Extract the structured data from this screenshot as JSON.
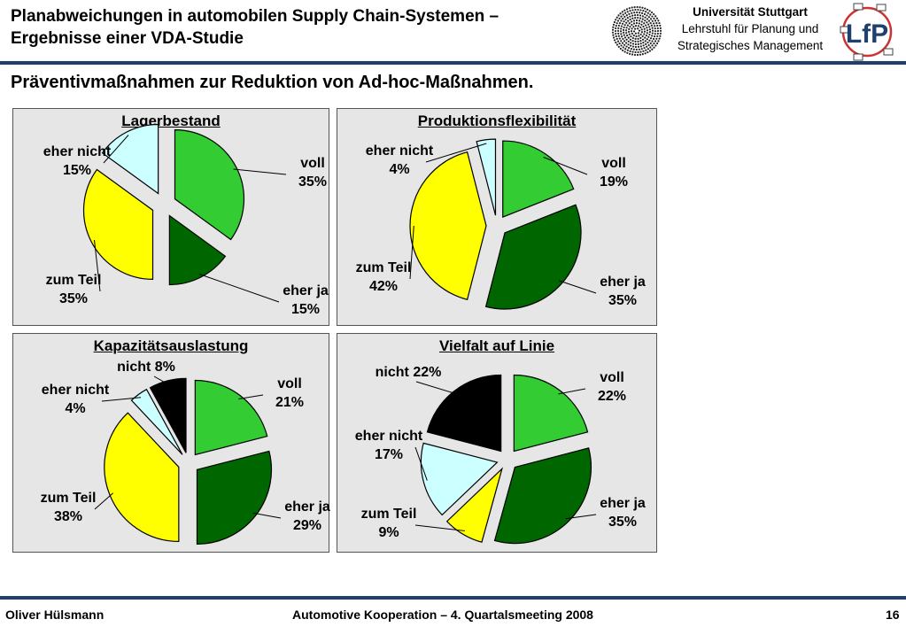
{
  "header": {
    "title_line1": "Planabweichungen in automobilen Supply Chain-Systemen –",
    "title_line2": "Ergebnisse einer VDA-Studie",
    "university": "Universität Stuttgart",
    "chair_line1": "Lehrstuhl für Planung und",
    "chair_line2": "Strategisches Management",
    "logo_text": "LfP"
  },
  "subtitle": "Präventivmaßnahmen zur Reduktion von Ad-hoc-Maßnahmen.",
  "colors": {
    "voll": "#33cc33",
    "eher_ja": "#006600",
    "zum_teil": "#ffff00",
    "eher_nicht": "#ccffff",
    "nicht": "#000000",
    "panel_bg": "#e6e6e6",
    "rule": "#1f3f6e"
  },
  "chart_data": [
    {
      "type": "pie",
      "title": "Lagerbestand",
      "slices": [
        {
          "key": "voll",
          "line1": "voll",
          "line2": "35%",
          "value": 35
        },
        {
          "key": "eher_ja",
          "line1": "eher ja",
          "line2": "15%",
          "value": 15
        },
        {
          "key": "zum_teil",
          "line1": "zum Teil",
          "line2": "35%",
          "value": 35
        },
        {
          "key": "eher_nicht",
          "line1": "eher nicht",
          "line2": "15%",
          "value": 15
        }
      ]
    },
    {
      "type": "pie",
      "title": "Produktionsflexibilität",
      "slices": [
        {
          "key": "voll",
          "line1": "voll",
          "line2": "19%",
          "value": 19
        },
        {
          "key": "eher_ja",
          "line1": "eher ja",
          "line2": "35%",
          "value": 35
        },
        {
          "key": "zum_teil",
          "line1": "zum Teil",
          "line2": "42%",
          "value": 42
        },
        {
          "key": "eher_nicht",
          "line1": "eher nicht",
          "line2": "4%",
          "value": 4
        }
      ]
    },
    {
      "type": "pie",
      "title": "Kapazitätsauslastung",
      "slices": [
        {
          "key": "voll",
          "line1": "voll",
          "line2": "21%",
          "value": 21
        },
        {
          "key": "eher_ja",
          "line1": "eher ja",
          "line2": "29%",
          "value": 29
        },
        {
          "key": "zum_teil",
          "line1": "zum Teil",
          "line2": "38%",
          "value": 38
        },
        {
          "key": "eher_nicht",
          "line1": "eher nicht",
          "line2": "4%",
          "value": 4
        },
        {
          "key": "nicht",
          "line1": "nicht 8%",
          "line2": "",
          "value": 8
        }
      ]
    },
    {
      "type": "pie",
      "title": "Vielfalt auf Linie",
      "slices": [
        {
          "key": "voll",
          "line1": "voll",
          "line2": "22%",
          "value": 22
        },
        {
          "key": "eher_ja",
          "line1": "eher ja",
          "line2": "35%",
          "value": 35
        },
        {
          "key": "zum_teil",
          "line1": "zum Teil",
          "line2": "9%",
          "value": 9
        },
        {
          "key": "eher_nicht",
          "line1": "eher nicht",
          "line2": "17%",
          "value": 17
        },
        {
          "key": "nicht",
          "line1": "nicht 22%",
          "line2": "",
          "value": 22
        }
      ]
    }
  ],
  "footer": {
    "author": "Oliver Hülsmann",
    "event": "Automotive Kooperation – 4. Quartalsmeeting 2008",
    "page": "16"
  }
}
